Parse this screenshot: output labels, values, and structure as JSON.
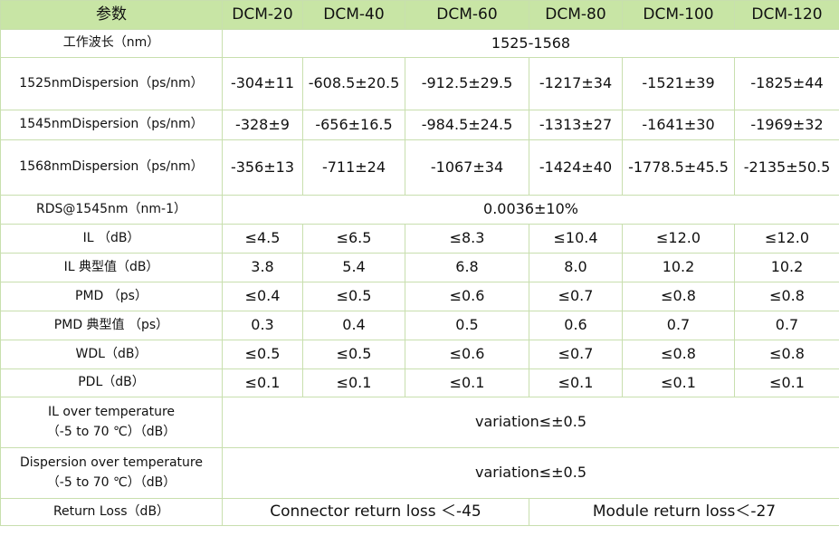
{
  "header": {
    "param": "参数",
    "models": [
      "DCM-20",
      "DCM-40",
      "DCM-60",
      "DCM-80",
      "DCM-100",
      "DCM-120"
    ]
  },
  "rows": {
    "wavelength": {
      "label": "工作波长（nm）",
      "value": "1525-1568"
    },
    "d1525": {
      "label": "1525nmDispersion（ps/nm）",
      "values": [
        "-304±11",
        "-608.5±20.5",
        "-912.5±29.5",
        "-1217±34",
        "-1521±39",
        "-1825±44"
      ]
    },
    "d1545": {
      "label": "1545nmDispersion（ps/nm）",
      "values": [
        "-328±9",
        "-656±16.5",
        "-984.5±24.5",
        "-1313±27",
        "-1641±30",
        "-1969±32"
      ]
    },
    "d1568": {
      "label": "1568nmDispersion（ps/nm）",
      "values": [
        "-356±13",
        "-711±24",
        "-1067±34",
        "-1424±40",
        "-1778.5±45.5",
        "-2135±50.5"
      ]
    },
    "rds": {
      "label": "RDS@1545nm（nm-1）",
      "value": "0.0036±10%"
    },
    "il": {
      "label": "IL （dB）",
      "values": [
        "≤4.5",
        "≤6.5",
        "≤8.3",
        "≤10.4",
        "≤12.0",
        "≤12.0"
      ]
    },
    "il_typ": {
      "label": "IL 典型值（dB）",
      "values": [
        "3.8",
        "5.4",
        "6.8",
        "8.0",
        "10.2",
        "10.2"
      ]
    },
    "pmd": {
      "label": "PMD （ps）",
      "values": [
        "≤0.4",
        "≤0.5",
        "≤0.6",
        "≤0.7",
        "≤0.8",
        "≤0.8"
      ]
    },
    "pmd_typ": {
      "label": "PMD 典型值 （ps）",
      "values": [
        "0.3",
        "0.4",
        "0.5",
        "0.6",
        "0.7",
        "0.7"
      ]
    },
    "wdl": {
      "label": "WDL（dB）",
      "values": [
        "≤0.5",
        "≤0.5",
        "≤0.6",
        "≤0.7",
        "≤0.8",
        "≤0.8"
      ]
    },
    "pdl": {
      "label": "PDL（dB）",
      "values": [
        "≤0.1",
        "≤0.1",
        "≤0.1",
        "≤0.1",
        "≤0.1",
        "≤0.1"
      ]
    },
    "il_temp": {
      "label_line1": "IL over temperature",
      "label_line2": "（-5 to 70 ℃）（dB）",
      "value": "variation≤±0.5"
    },
    "disp_temp": {
      "label_line1": "Dispersion over temperature",
      "label_line2": "（-5 to 70 ℃）（dB）",
      "value": "variation≤±0.5"
    },
    "return_loss": {
      "label": "Return Loss（dB）",
      "connector": "Connector return loss ＜-45",
      "module": "Module return loss＜-27"
    }
  }
}
